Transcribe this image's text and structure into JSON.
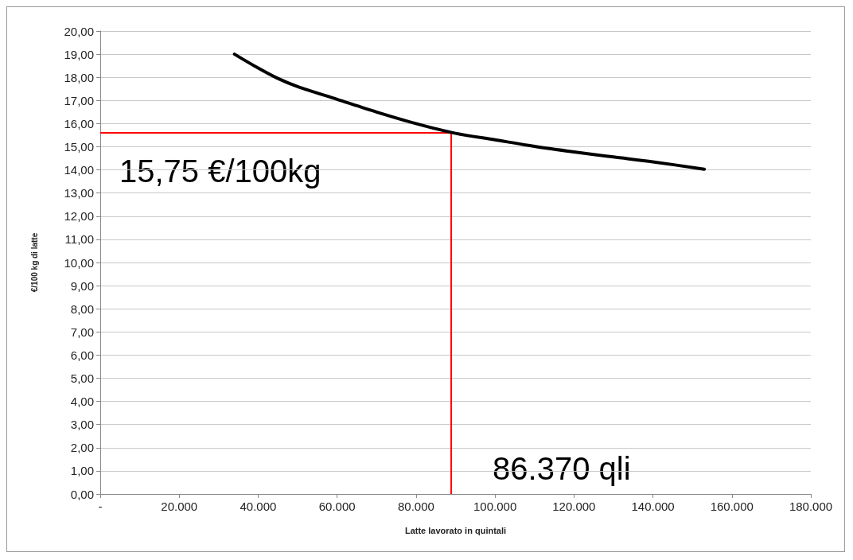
{
  "chart_data": {
    "type": "line",
    "xlabel": "Latte lavorato in quintali",
    "ylabel": "€/100 kg di latte",
    "x": [
      34000,
      40000,
      45000,
      50000,
      60000,
      70000,
      80000,
      90000,
      100000,
      110000,
      120000,
      130000,
      140000,
      153000
    ],
    "series": [
      {
        "color": "#000000",
        "values": [
          19.0,
          18.4,
          17.95,
          17.6,
          17.05,
          16.5,
          16.0,
          15.58,
          15.3,
          15.02,
          14.78,
          14.56,
          14.35,
          14.03
        ]
      }
    ],
    "xlim": [
      0,
      180000
    ],
    "xticks": [
      {
        "value": 0,
        "label": "-"
      },
      {
        "value": 20000,
        "label": "20.000"
      },
      {
        "value": 40000,
        "label": "40.000"
      },
      {
        "value": 60000,
        "label": "60.000"
      },
      {
        "value": 80000,
        "label": "80.000"
      },
      {
        "value": 100000,
        "label": "100.000"
      },
      {
        "value": 120000,
        "label": "120.000"
      },
      {
        "value": 140000,
        "label": "140.000"
      },
      {
        "value": 160000,
        "label": "160.000"
      },
      {
        "value": 180000,
        "label": "180.000"
      }
    ],
    "ylim": [
      0,
      20
    ],
    "yticks": [
      {
        "value": 0,
        "label": "0,00"
      },
      {
        "value": 1,
        "label": "1,00"
      },
      {
        "value": 2,
        "label": "2,00"
      },
      {
        "value": 3,
        "label": "3,00"
      },
      {
        "value": 4,
        "label": "4,00"
      },
      {
        "value": 5,
        "label": "5,00"
      },
      {
        "value": 6,
        "label": "6,00"
      },
      {
        "value": 7,
        "label": "7,00"
      },
      {
        "value": 8,
        "label": "8,00"
      },
      {
        "value": 9,
        "label": "9,00"
      },
      {
        "value": 10,
        "label": "10,00"
      },
      {
        "value": 11,
        "label": "11,00"
      },
      {
        "value": 12,
        "label": "12,00"
      },
      {
        "value": 13,
        "label": "13,00"
      },
      {
        "value": 14,
        "label": "14,00"
      },
      {
        "value": 15,
        "label": "15,00"
      },
      {
        "value": 16,
        "label": "16,00"
      },
      {
        "value": 17,
        "label": "17,00"
      },
      {
        "value": 18,
        "label": "18,00"
      },
      {
        "value": 19,
        "label": "19,00"
      },
      {
        "value": 20,
        "label": "20,00"
      }
    ],
    "ref_lines": [
      {
        "axis": "y",
        "value": 15.6,
        "color": "#ff0000"
      },
      {
        "axis": "x",
        "value": 88900,
        "color": "#ff0000"
      }
    ],
    "annotations": [
      "15,75 €/100kg",
      "86.370 qli"
    ],
    "grid": "y",
    "marker": "none",
    "line_style": "solid"
  }
}
